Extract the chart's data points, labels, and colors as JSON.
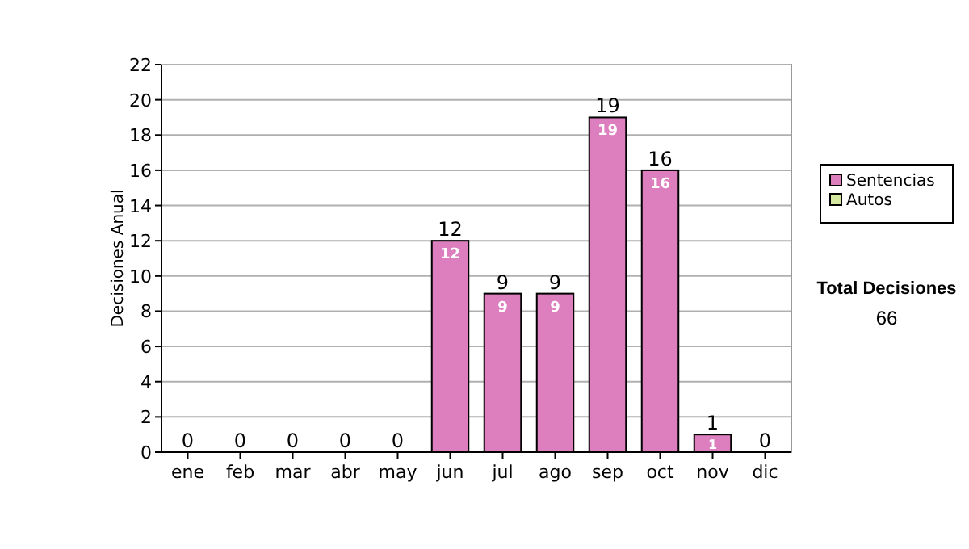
{
  "chart_data": {
    "type": "bar",
    "ylabel": "Decisiones Anual",
    "categories": [
      "ene",
      "feb",
      "mar",
      "abr",
      "may",
      "jun",
      "jul",
      "ago",
      "sep",
      "oct",
      "nov",
      "dic"
    ],
    "series": [
      {
        "name": "Sentencias",
        "color": "#dd7fbf",
        "values": [
          0,
          0,
          0,
          0,
          0,
          12,
          9,
          9,
          19,
          16,
          1,
          0
        ],
        "value_labels": [
          null,
          null,
          null,
          null,
          null,
          "12",
          "9",
          "9",
          "19",
          "16",
          "1",
          null
        ]
      },
      {
        "name": "Autos",
        "color": "#d4e8a0",
        "values": [
          0,
          0,
          0,
          0,
          0,
          0,
          0,
          0,
          0,
          0,
          0,
          0
        ]
      }
    ],
    "totals": [
      "0",
      "0",
      "0",
      "0",
      "0",
      "12",
      "9",
      "9",
      "19",
      "16",
      "1",
      "0"
    ],
    "ylim": [
      0,
      22
    ],
    "yticks": [
      0,
      2,
      4,
      6,
      8,
      10,
      12,
      14,
      16,
      18,
      20,
      22
    ],
    "grid": "y",
    "legend": "right",
    "annotations": [
      "Total Decisiones",
      "66"
    ]
  }
}
